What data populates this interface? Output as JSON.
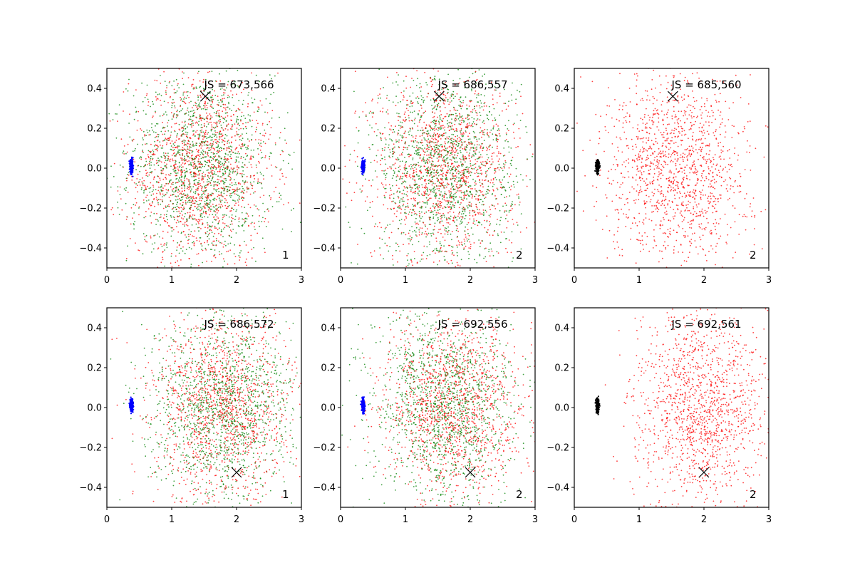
{
  "figure": {
    "background": "#ffffff"
  },
  "chart_data": [
    {
      "type": "scatter",
      "panel_index": 1,
      "xlim": [
        0,
        3
      ],
      "ylim": [
        -0.5,
        0.5
      ],
      "xticks": [
        "0",
        "1",
        "2",
        "3"
      ],
      "yticks": [
        "−0.4",
        "−0.2",
        "0.0",
        "0.2",
        "0.4"
      ],
      "annotation": "JS = 673,566",
      "corner_label": "1",
      "marker_x": {
        "x": 1.52,
        "y": 0.36
      },
      "cluster": {
        "color": "#0000ff",
        "center": [
          0.38,
          0.01
        ],
        "spread": [
          0.02,
          0.025
        ]
      },
      "series": [
        {
          "color": "#ff0000",
          "center": [
            1.45,
            0.0
          ],
          "spread": [
            0.55,
            0.24
          ]
        },
        {
          "color": "#008000",
          "center": [
            1.45,
            0.0
          ],
          "spread": [
            0.55,
            0.24
          ]
        }
      ],
      "grid": false
    },
    {
      "type": "scatter",
      "panel_index": 2,
      "xlim": [
        0,
        3
      ],
      "ylim": [
        -0.5,
        0.5
      ],
      "xticks": [
        "0",
        "1",
        "2",
        "3"
      ],
      "yticks": [
        "−0.4",
        "−0.2",
        "0.0",
        "0.2",
        "0.4"
      ],
      "annotation": "JS = 686,557",
      "corner_label": "2",
      "marker_x": {
        "x": 1.52,
        "y": 0.36
      },
      "cluster": {
        "color": "#0000ff",
        "center": [
          0.35,
          0.01
        ],
        "spread": [
          0.02,
          0.025
        ]
      },
      "series": [
        {
          "color": "#ff0000",
          "center": [
            1.6,
            0.0
          ],
          "spread": [
            0.55,
            0.24
          ]
        },
        {
          "color": "#008000",
          "center": [
            1.6,
            0.0
          ],
          "spread": [
            0.55,
            0.24
          ]
        }
      ],
      "grid": false
    },
    {
      "type": "scatter",
      "panel_index": 3,
      "xlim": [
        0,
        3
      ],
      "ylim": [
        -0.5,
        0.5
      ],
      "xticks": [
        "0",
        "1",
        "2",
        "3"
      ],
      "yticks": [
        "−0.4",
        "−0.2",
        "0.0",
        "0.2",
        "0.4"
      ],
      "annotation": "JS = 685,560",
      "corner_label": "2",
      "marker_x": {
        "x": 1.52,
        "y": 0.36
      },
      "cluster": {
        "color": "#000000",
        "center": [
          0.36,
          0.01
        ],
        "spread": [
          0.02,
          0.025
        ]
      },
      "series": [
        {
          "color": "#ff0000",
          "center": [
            1.6,
            0.0
          ],
          "spread": [
            0.55,
            0.24
          ]
        }
      ],
      "grid": false
    },
    {
      "type": "scatter",
      "panel_index": 4,
      "xlim": [
        0,
        3
      ],
      "ylim": [
        -0.5,
        0.5
      ],
      "xticks": [
        "0",
        "1",
        "2",
        "3"
      ],
      "yticks": [
        "−0.4",
        "−0.2",
        "0.0",
        "0.2",
        "0.4"
      ],
      "annotation": "JS = 686,572",
      "corner_label": "1",
      "marker_x": {
        "x": 2.0,
        "y": -0.325
      },
      "cluster": {
        "color": "#0000ff",
        "center": [
          0.38,
          0.01
        ],
        "spread": [
          0.02,
          0.025
        ]
      },
      "series": [
        {
          "color": "#ff0000",
          "center": [
            1.8,
            0.0
          ],
          "spread": [
            0.55,
            0.24
          ]
        },
        {
          "color": "#008000",
          "center": [
            1.8,
            0.0
          ],
          "spread": [
            0.55,
            0.24
          ]
        }
      ],
      "grid": false
    },
    {
      "type": "scatter",
      "panel_index": 5,
      "xlim": [
        0,
        3
      ],
      "ylim": [
        -0.5,
        0.5
      ],
      "xticks": [
        "0",
        "1",
        "2",
        "3"
      ],
      "yticks": [
        "−0.4",
        "−0.2",
        "0.0",
        "0.2",
        "0.4"
      ],
      "annotation": "JS = 692,556",
      "corner_label": "2",
      "marker_x": {
        "x": 2.0,
        "y": -0.325
      },
      "cluster": {
        "color": "#0000ff",
        "center": [
          0.35,
          0.01
        ],
        "spread": [
          0.02,
          0.025
        ]
      },
      "series": [
        {
          "color": "#ff0000",
          "center": [
            1.75,
            0.0
          ],
          "spread": [
            0.55,
            0.24
          ]
        },
        {
          "color": "#008000",
          "center": [
            1.6,
            0.0
          ],
          "spread": [
            0.55,
            0.24
          ]
        }
      ],
      "grid": false
    },
    {
      "type": "scatter",
      "panel_index": 6,
      "xlim": [
        0,
        3
      ],
      "ylim": [
        -0.5,
        0.5
      ],
      "xticks": [
        "0",
        "1",
        "2",
        "3"
      ],
      "yticks": [
        "−0.4",
        "−0.2",
        "0.0",
        "0.2",
        "0.4"
      ],
      "annotation": "JS = 692,561",
      "corner_label": "2",
      "marker_x": {
        "x": 2.0,
        "y": -0.325
      },
      "cluster": {
        "color": "#000000",
        "center": [
          0.36,
          0.01
        ],
        "spread": [
          0.02,
          0.025
        ]
      },
      "series": [
        {
          "color": "#ff0000",
          "center": [
            1.95,
            0.0
          ],
          "spread": [
            0.5,
            0.24
          ]
        }
      ],
      "grid": false
    }
  ]
}
